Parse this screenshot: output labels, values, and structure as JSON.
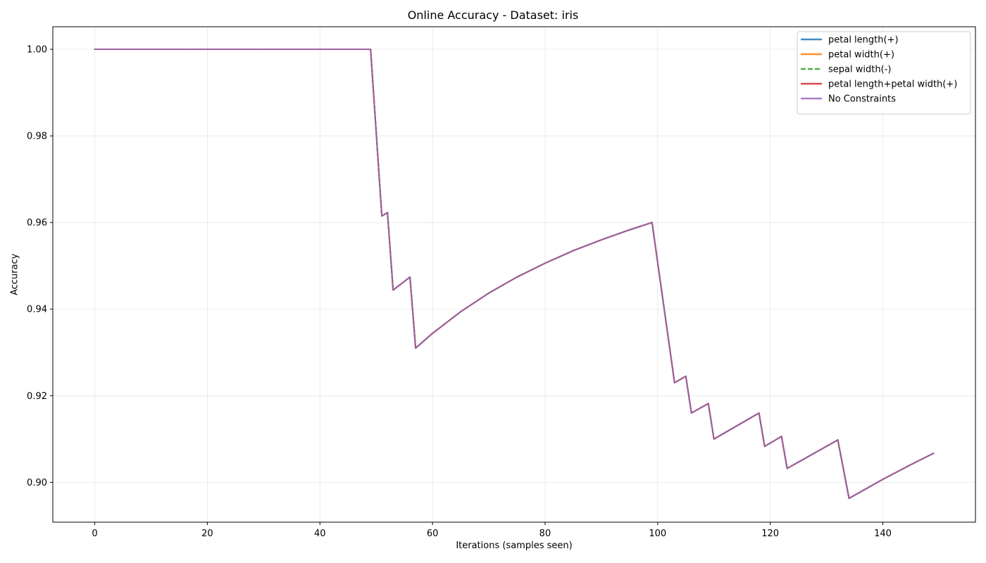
{
  "chart_data": {
    "type": "line",
    "title": "Online Accuracy - Dataset: iris",
    "xlabel": "Iterations (samples seen)",
    "ylabel": "Accuracy",
    "xlim": [
      -7.45,
      156.45
    ],
    "ylim": [
      0.8908,
      1.0052
    ],
    "xticks": [
      0,
      20,
      40,
      60,
      80,
      100,
      120,
      140
    ],
    "yticks": [
      0.9,
      0.92,
      0.94,
      0.96,
      0.98,
      1.0
    ],
    "grid": true,
    "legend_position": "top-right",
    "x": [
      0,
      49,
      51,
      52,
      53,
      56,
      57,
      60,
      65,
      70,
      75,
      80,
      85,
      90,
      95,
      99,
      103,
      105,
      106,
      109,
      110,
      118,
      119,
      122,
      123,
      132,
      134,
      140,
      145,
      149
    ],
    "y": [
      1.0,
      1.0,
      0.9615,
      0.9623,
      0.9444,
      0.9474,
      0.931,
      0.9344,
      0.9394,
      0.9437,
      0.9474,
      0.9506,
      0.9535,
      0.956,
      0.9583,
      0.96,
      0.923,
      0.9245,
      0.916,
      0.9182,
      0.91,
      0.916,
      0.9083,
      0.9106,
      0.9032,
      0.9098,
      0.8963,
      0.9007,
      0.9041,
      0.9067
    ],
    "series": [
      {
        "name": "petal length(+)",
        "color": "#1f77b4",
        "dash": "solid"
      },
      {
        "name": "petal width(+)",
        "color": "#ff7f0e",
        "dash": "solid"
      },
      {
        "name": "sepal width(-)",
        "color": "#2ca02c",
        "dash": "dashed"
      },
      {
        "name": "petal length+petal width(+)",
        "color": "#d62728",
        "dash": "solid"
      },
      {
        "name": "No Constraints",
        "color": "#9467bd",
        "dash": "solid"
      }
    ]
  }
}
